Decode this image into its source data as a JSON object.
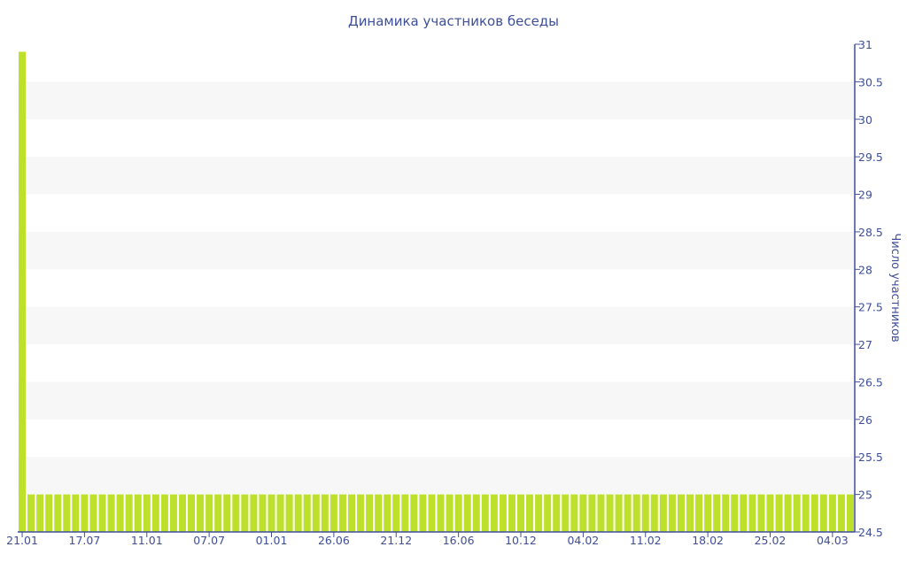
{
  "chart_data": {
    "type": "bar",
    "title": "Динамика участников беседы",
    "ylabel": "Число участников",
    "xlabel": "",
    "ylim": [
      24.5,
      31
    ],
    "y_ticks": [
      "24.5",
      "25",
      "25.5",
      "26",
      "26.5",
      "27",
      "27.5",
      "28",
      "28.5",
      "29",
      "29.5",
      "30",
      "30.5",
      "31"
    ],
    "y_axis_position": "right",
    "x_tick_labels": [
      "21.01",
      "17.07",
      "11.01",
      "07.07",
      "01.01",
      "26.06",
      "21.12",
      "16.06",
      "10.12",
      "04.02",
      "11.02",
      "18.02",
      "25.02",
      "04.03"
    ],
    "x_tick_every": 7,
    "values": [
      30.9,
      25,
      25,
      25,
      25,
      25,
      25,
      25,
      25,
      25,
      25,
      25,
      25,
      25,
      25,
      25,
      25,
      25,
      25,
      25,
      25,
      25,
      25,
      25,
      25,
      25,
      25,
      25,
      25,
      25,
      25,
      25,
      25,
      25,
      25,
      25,
      25,
      25,
      25,
      25,
      25,
      25,
      25,
      25,
      25,
      25,
      25,
      25,
      25,
      25,
      25,
      25,
      25,
      25,
      25,
      25,
      25,
      25,
      25,
      25,
      25,
      25,
      25,
      25,
      25,
      25,
      25,
      25,
      25,
      25,
      25,
      25,
      25,
      25,
      25,
      25,
      25,
      25,
      25,
      25,
      25,
      25,
      25,
      25,
      25,
      25,
      25,
      25,
      25,
      25,
      25,
      25,
      25,
      25
    ],
    "grid": "alternating horizontal bands",
    "legend": "none",
    "colors": {
      "bar": "#bde12a",
      "axis": "#3e4f9a",
      "band": "#f7f7f7"
    }
  }
}
